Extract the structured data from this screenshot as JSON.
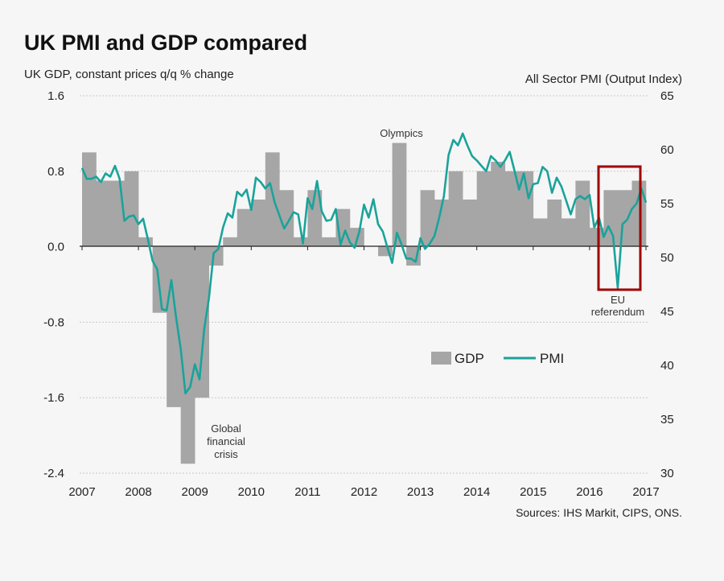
{
  "chart_data": {
    "type": "bar+line",
    "title": "UK PMI and GDP compared",
    "ylabel_left": "UK GDP, constant prices q/q % change",
    "ylabel_right": "All Sector PMI (Output Index)",
    "source": "Sources: IHS Markit, CIPS, ONS.",
    "x_ticks": [
      "2007",
      "2008",
      "2009",
      "2010",
      "2011",
      "2012",
      "2013",
      "2014",
      "2015",
      "2016",
      "2017"
    ],
    "y_left": {
      "lim": [
        -2.4,
        1.6
      ],
      "ticks": [
        "1.6",
        "0.8",
        "0.0",
        "-0.8",
        "-1.6",
        "-2.4"
      ]
    },
    "y_right": {
      "lim": [
        30,
        65
      ],
      "ticks": [
        "65",
        "60",
        "55",
        "50",
        "45",
        "40",
        "35",
        "30"
      ]
    },
    "grid": true,
    "legend_position": "center-right",
    "series": [
      {
        "name": "GDP",
        "type": "bar",
        "frequency": "quarterly",
        "start": "2007 Q1",
        "axis": "left",
        "color": "#a6a6a6",
        "values": [
          1.0,
          0.7,
          0.7,
          0.8,
          0.1,
          -0.7,
          -1.7,
          -2.3,
          -1.6,
          -0.2,
          0.1,
          0.4,
          0.5,
          1.0,
          0.6,
          0.1,
          0.6,
          0.1,
          0.4,
          0.2,
          0.0,
          -0.1,
          1.1,
          -0.2,
          0.6,
          0.5,
          0.8,
          0.5,
          0.8,
          0.9,
          0.8,
          0.8,
          0.3,
          0.5,
          0.3,
          0.7,
          0.2,
          0.6,
          0.6,
          0.7
        ]
      },
      {
        "name": "PMI",
        "type": "line",
        "frequency": "monthly",
        "start": "2007-01",
        "axis": "right",
        "color": "#1aa39a",
        "values": [
          58.3,
          57.3,
          57.3,
          57.5,
          57.0,
          57.8,
          57.5,
          58.5,
          57.3,
          53.4,
          53.8,
          53.9,
          53.1,
          53.6,
          51.7,
          49.7,
          48.9,
          45.2,
          45.1,
          47.9,
          44.5,
          41.5,
          37.4,
          38.0,
          40.1,
          38.7,
          43.4,
          46.2,
          50.4,
          50.8,
          52.8,
          54.1,
          53.7,
          56.1,
          55.7,
          56.3,
          54.4,
          57.4,
          57.0,
          56.4,
          56.9,
          55.1,
          53.9,
          52.7,
          53.4,
          54.2,
          54.0,
          51.3,
          55.5,
          54.5,
          57.1,
          54.3,
          53.4,
          53.5,
          54.5,
          51.2,
          52.5,
          51.4,
          50.9,
          52.4,
          54.9,
          53.7,
          55.4,
          53.1,
          52.4,
          50.9,
          49.5,
          52.3,
          51.2,
          49.9,
          49.9,
          49.6,
          51.8,
          50.8,
          51.3,
          52.0,
          53.7,
          55.7,
          59.5,
          60.9,
          60.4,
          61.5,
          60.4,
          59.4,
          59.0,
          58.5,
          58.0,
          59.4,
          59.0,
          58.4,
          59.0,
          59.8,
          58.1,
          56.3,
          57.8,
          55.5,
          56.8,
          56.9,
          58.4,
          58.0,
          56.0,
          57.4,
          56.6,
          55.3,
          54.0,
          55.4,
          55.7,
          55.4,
          55.8,
          52.8,
          53.7,
          51.9,
          52.9,
          52.0,
          47.2,
          53.1,
          53.5,
          54.5,
          55.0,
          56.4,
          55.1
        ]
      }
    ],
    "annotations": {
      "olympics": "Olympics",
      "gfc": [
        "Global",
        "financial",
        "crisis"
      ],
      "eu": [
        "EU",
        "referendum"
      ],
      "highlight_color": "#a00000"
    }
  }
}
